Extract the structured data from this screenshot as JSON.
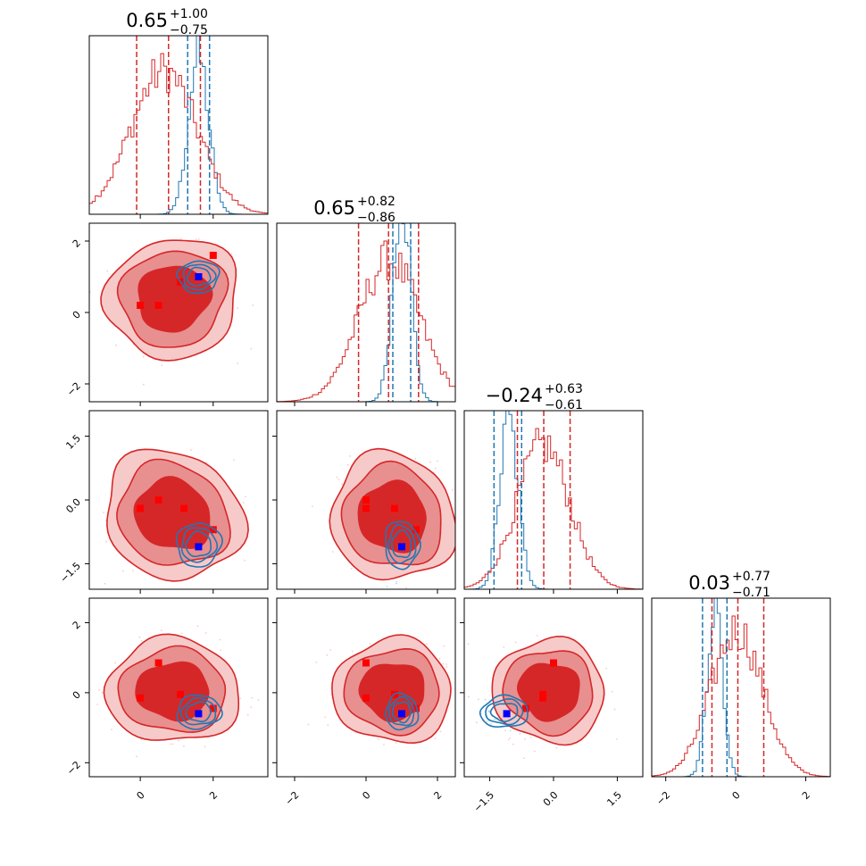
{
  "colors": {
    "red": "#d62728",
    "blue": "#1f77b4",
    "red_marker": "#ff0000",
    "blue_marker": "#0000ff"
  },
  "chart_data": {
    "type": "corner",
    "parameters": [
      {
        "index": 0,
        "range": [
          -1.4,
          3.5
        ],
        "ticks": [
          0,
          2
        ],
        "tick_labels": [
          "0",
          "2"
        ],
        "title": {
          "value": "0.65",
          "plus": "+1.00",
          "minus": "−0.75"
        },
        "quantiles_red": [
          -0.1,
          1.65
        ],
        "quantiles_blue": [
          1.3,
          1.9
        ],
        "hist_red": {
          "mean": 0.65,
          "sd": 0.9
        },
        "hist_blue": {
          "mean": 1.6,
          "sd": 0.28
        }
      },
      {
        "index": 1,
        "range": [
          -2.5,
          2.5
        ],
        "ticks": [
          -2,
          0,
          2
        ],
        "tick_labels": [
          "−2",
          "0",
          "2"
        ],
        "title": {
          "value": "0.65",
          "plus": "+0.82",
          "minus": "−0.86"
        },
        "quantiles_red": [
          -0.21,
          1.47
        ],
        "quantiles_blue": [
          0.75,
          1.25
        ],
        "hist_red": {
          "mean": 0.65,
          "sd": 0.85
        },
        "hist_blue": {
          "mean": 1.0,
          "sd": 0.25
        }
      },
      {
        "index": 2,
        "range": [
          -2.1,
          2.1
        ],
        "ticks": [
          -1.5,
          0.0,
          1.5
        ],
        "tick_labels": [
          "−1.5",
          "0.0",
          "1.5"
        ],
        "title": {
          "value": "−0.24",
          "plus": "+0.63",
          "minus": "−0.61"
        },
        "quantiles_red": [
          -0.85,
          0.39
        ],
        "quantiles_blue": [
          -1.4,
          -0.75
        ],
        "hist_red": {
          "mean": -0.24,
          "sd": 0.62
        },
        "hist_blue": {
          "mean": -1.05,
          "sd": 0.22
        }
      },
      {
        "index": 3,
        "range": [
          -2.4,
          2.7
        ],
        "ticks": [
          -2,
          0,
          2
        ],
        "tick_labels": [
          "−2",
          "0",
          "2"
        ],
        "title": {
          "value": "0.03",
          "plus": "+0.77",
          "minus": "−0.71"
        },
        "quantiles_red": [
          -0.68,
          0.8
        ],
        "quantiles_blue": [
          -0.95,
          -0.25
        ],
        "hist_red": {
          "mean": 0.03,
          "sd": 0.74
        },
        "hist_blue": {
          "mean": -0.6,
          "sd": 0.22
        }
      }
    ],
    "panels_2d": [
      {
        "x": 0,
        "y": 1,
        "red_center": [
          0.9,
          0.4
        ],
        "red_spread": [
          1.05,
          0.95
        ],
        "red_tilt": 0.35,
        "blue_center": [
          1.6,
          1.0
        ],
        "blue_spread": [
          0.35,
          0.28
        ],
        "red_markers": [
          [
            0.0,
            0.2
          ],
          [
            0.5,
            0.2
          ],
          [
            1.1,
            0.85
          ],
          [
            1.6,
            1.0
          ],
          [
            2.0,
            1.6
          ]
        ],
        "blue_marker": [
          1.6,
          1.0
        ]
      },
      {
        "x": 0,
        "y": 2,
        "red_center": [
          0.9,
          -0.35
        ],
        "red_spread": [
          1.1,
          0.85
        ],
        "red_tilt": -0.25,
        "blue_center": [
          1.6,
          -1.05
        ],
        "blue_spread": [
          0.38,
          0.32
        ],
        "red_markers": [
          [
            0.0,
            -0.2
          ],
          [
            0.5,
            0.0
          ],
          [
            1.2,
            -0.2
          ],
          [
            2.0,
            -0.7
          ]
        ],
        "blue_marker": [
          1.6,
          -1.1
        ]
      },
      {
        "x": 1,
        "y": 2,
        "red_center": [
          0.75,
          -0.4
        ],
        "red_spread": [
          1.0,
          0.85
        ],
        "red_tilt": -0.2,
        "blue_center": [
          1.0,
          -1.05
        ],
        "blue_spread": [
          0.3,
          0.35
        ],
        "red_markers": [
          [
            0.0,
            0.0
          ],
          [
            0.0,
            -0.2
          ],
          [
            0.8,
            -0.2
          ],
          [
            1.4,
            -0.7
          ]
        ],
        "blue_marker": [
          1.0,
          -1.1
        ]
      },
      {
        "x": 0,
        "y": 3,
        "red_center": [
          0.9,
          0.05
        ],
        "red_spread": [
          1.05,
          0.85
        ],
        "red_tilt": -0.05,
        "blue_center": [
          1.6,
          -0.55
        ],
        "blue_spread": [
          0.38,
          0.3
        ],
        "red_markers": [
          [
            0.0,
            -0.15
          ],
          [
            0.5,
            0.85
          ],
          [
            1.1,
            -0.05
          ],
          [
            2.0,
            -0.45
          ]
        ],
        "blue_marker": [
          1.6,
          -0.6
        ]
      },
      {
        "x": 1,
        "y": 3,
        "red_center": [
          0.75,
          0.05
        ],
        "red_spread": [
          0.95,
          0.85
        ],
        "red_tilt": -0.05,
        "blue_center": [
          1.0,
          -0.55
        ],
        "blue_spread": [
          0.28,
          0.32
        ],
        "red_markers": [
          [
            0.0,
            0.85
          ],
          [
            0.0,
            -0.15
          ],
          [
            0.8,
            -0.05
          ],
          [
            1.4,
            -0.45
          ]
        ],
        "blue_marker": [
          1.0,
          -0.6
        ]
      },
      {
        "x": 2,
        "y": 3,
        "red_center": [
          -0.1,
          0.05
        ],
        "red_spread": [
          0.75,
          0.85
        ],
        "red_tilt": 0.15,
        "blue_center": [
          -1.15,
          -0.55
        ],
        "blue_spread": [
          0.35,
          0.28
        ],
        "red_markers": [
          [
            0.0,
            0.85
          ],
          [
            -0.25,
            -0.05
          ],
          [
            -0.25,
            -0.15
          ],
          [
            -0.65,
            -0.45
          ]
        ],
        "blue_marker": [
          -1.1,
          -0.6
        ]
      }
    ]
  }
}
